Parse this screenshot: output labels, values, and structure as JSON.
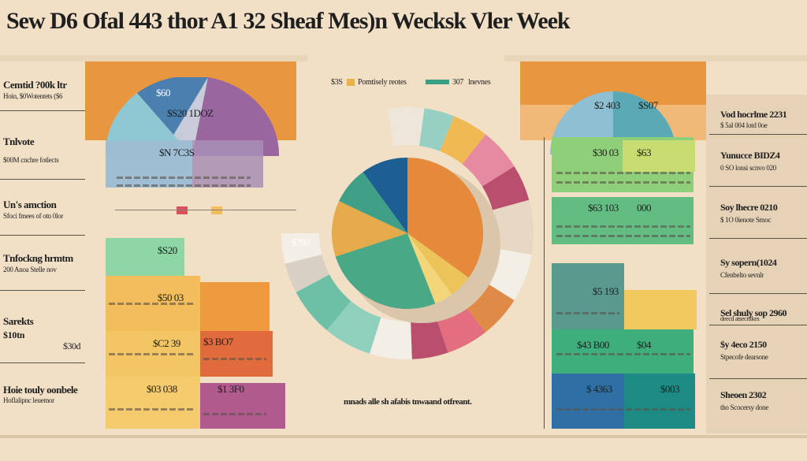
{
  "title": "Sew D6 Ofal 443 thor A1 32 Sheaf Mes)n Wecksk Vler Week",
  "left_labels": [
    {
      "head": "Cemtid ?00k ltr",
      "sub": "Hoin, $0Wotentets ($6"
    },
    {
      "head": "Tnlvote",
      "sub": "$00M cnchre fotlects"
    },
    {
      "head": "Un's amction",
      "sub": "Sfoci fmees of otn 0lor"
    },
    {
      "head": "Tnfockng hrmtm",
      "sub": "200 Anoa Stelle nov"
    },
    {
      "head": "Sarekts",
      "sub": "$10tn"
    },
    {
      "head": "Hoie touly oonbele",
      "sub": "Hoflalipnc leuemor"
    }
  ],
  "left_values": {
    "arch_top": "$60",
    "arch_mid": "$S20  1DOZ",
    "band1": "$N 7C3S",
    "band2": "$S20",
    "band3": "$50 03",
    "band4a": "$C2 39",
    "band4b": "$3 BO7",
    "band5a": "$03 038",
    "band5b": "$1 3F0",
    "sarekts_val": "$30d"
  },
  "pie_legend": [
    {
      "label": "$3S",
      "sub": "Pomtisely reotes",
      "color": "#e8b24a"
    },
    {
      "label": "307",
      "sub": "lnevnes",
      "color": "#3a9f86"
    }
  ],
  "pie_center_label": "$?97",
  "caption": "mnads alle sh afabis tnwaand otfreant.",
  "right_values": {
    "arch_a": "$2 403",
    "arch_b": "$S07",
    "rows": [
      {
        "a": "$30 03",
        "b": "$63"
      },
      {
        "a": "$63 103",
        "b": "000"
      },
      {
        "a": "$5 193",
        "b": ""
      },
      {
        "a": "$43 B00",
        "b": "$04"
      },
      {
        "a": "$ 4363",
        "b": "$003"
      }
    ]
  },
  "right_labels": [
    {
      "head": "Vod hocrlme  2231",
      "sub": "$ 5al 004 lotd 0oe"
    },
    {
      "head": "Yunucce BIDZ4",
      "sub": "0 SO lonsi scnvo 020"
    },
    {
      "head": "Soy lhecre 0210",
      "sub": "$ 1O 0ienote Smoc"
    },
    {
      "head": "Sy sopern(1024",
      "sub": "Cfenbelto sevnlr"
    },
    {
      "head": "Sel shuly sop 2960",
      "sub": "deecd atsecrilkes"
    },
    {
      "head": "$y 4eco 2150",
      "sub": "Stpecofe dearsone"
    },
    {
      "head": "Sheoen 2302",
      "sub": "tho Scocersy done"
    }
  ],
  "chart_data": {
    "type": "pie",
    "title": "Sew D6 Ofal 443 thor A1 32 Sheaf Mes)n Wecksk Vler Week",
    "slices": [
      {
        "value": 35,
        "color": "#e58a3a"
      },
      {
        "value": 5,
        "color": "#ecc45a"
      },
      {
        "value": 4,
        "color": "#f4d67a"
      },
      {
        "value": 26,
        "color": "#49a886"
      },
      {
        "value": 12,
        "color": "#e5aa4a"
      },
      {
        "value": 8,
        "color": "#3f9f87"
      },
      {
        "value": 10,
        "color": "#1d5f93"
      }
    ],
    "ring_segments": [
      {
        "value": 6,
        "color": "#eee7d9"
      },
      {
        "value": 5,
        "color": "#95d0c2"
      },
      {
        "value": 6,
        "color": "#f1b953"
      },
      {
        "value": 7,
        "color": "#e58aa0"
      },
      {
        "value": 6,
        "color": "#b94e6d"
      },
      {
        "value": 9,
        "color": "#e8d7c3"
      },
      {
        "value": 8,
        "color": "#f4efe6"
      },
      {
        "value": 7,
        "color": "#e08a47"
      },
      {
        "value": 7,
        "color": "#e26e7f"
      },
      {
        "value": 6,
        "color": "#b94e6d"
      },
      {
        "value": 7,
        "color": "#f4efe6"
      },
      {
        "value": 8,
        "color": "#8fd0bd"
      },
      {
        "value": 8,
        "color": "#6dbfa6"
      },
      {
        "value": 5,
        "color": "#d8d0c2"
      },
      {
        "value": 5,
        "color": "#f4efe6"
      }
    ]
  },
  "colors": {
    "background": "#f1dfc6",
    "orange": "#e8963f",
    "yellow": "#f2bd5a",
    "teal": "#4cae93",
    "purple": "#8a5a8e",
    "blue": "#2f6fa3",
    "red": "#d8525c"
  }
}
